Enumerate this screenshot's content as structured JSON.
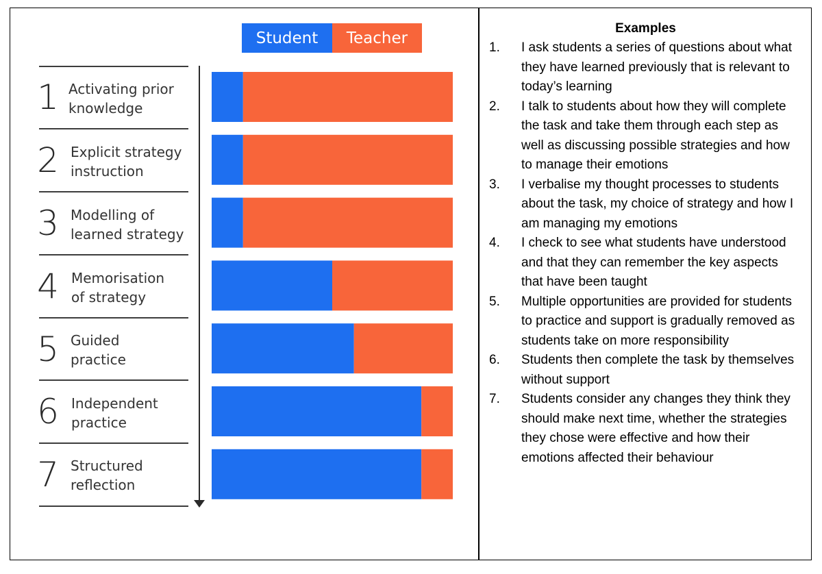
{
  "legend": {
    "student_label": "Student",
    "teacher_label": "Teacher",
    "student_color": "#1e6ff0",
    "teacher_color": "#f8653a"
  },
  "chart_data": {
    "type": "bar",
    "stacked": true,
    "orientation": "horizontal",
    "categories": [
      "Activating prior knowledge",
      "Explicit strategy instruction",
      "Modelling of learned strategy",
      "Memorisation of strategy",
      "Guided practice",
      "Independent practice",
      "Structured reflection"
    ],
    "series": [
      {
        "name": "Student",
        "values": [
          13,
          13,
          13,
          50,
          59,
          87,
          87
        ]
      },
      {
        "name": "Teacher",
        "values": [
          87,
          87,
          87,
          50,
          41,
          13,
          13
        ]
      }
    ],
    "xlim": [
      0,
      100
    ]
  },
  "stages": [
    {
      "number": "1",
      "label": "Activating prior\nknowledge"
    },
    {
      "number": "2",
      "label": "Explicit strategy\ninstruction"
    },
    {
      "number": "3",
      "label": "Modelling of\nlearned strategy"
    },
    {
      "number": "4",
      "label": "Memorisation\nof strategy"
    },
    {
      "number": "5",
      "label": "Guided\npractice"
    },
    {
      "number": "6",
      "label": "Independent\npractice"
    },
    {
      "number": "7",
      "label": "Structured\nreflection"
    }
  ],
  "examples": {
    "title": "Examples",
    "items": [
      {
        "num": "1.",
        "text": "I ask students a series of questions about what they have learned previously that is relevant to today’s learning"
      },
      {
        "num": "2.",
        "text": "I talk to students about how they will complete the task and take them through each step as well as discussing possible strategies and how to manage their emotions"
      },
      {
        "num": "3.",
        "text": "I verbalise my thought processes to students about the task, my choice of strategy and how I am managing my emotions"
      },
      {
        "num": "4.",
        "text": "I check to see what students have understood and that they can remember the key aspects that have been taught"
      },
      {
        "num": "5.",
        "text": "Multiple opportunities are provided for students to practice and support is gradually removed as students take on more responsibility"
      },
      {
        "num": "6.",
        "text": "Students then complete the task by themselves without support"
      },
      {
        "num": "7.",
        "text": "Students consider any changes they think they should make next time, whether the strategies they chose were effective and how their emotions affected their behaviour"
      }
    ]
  }
}
